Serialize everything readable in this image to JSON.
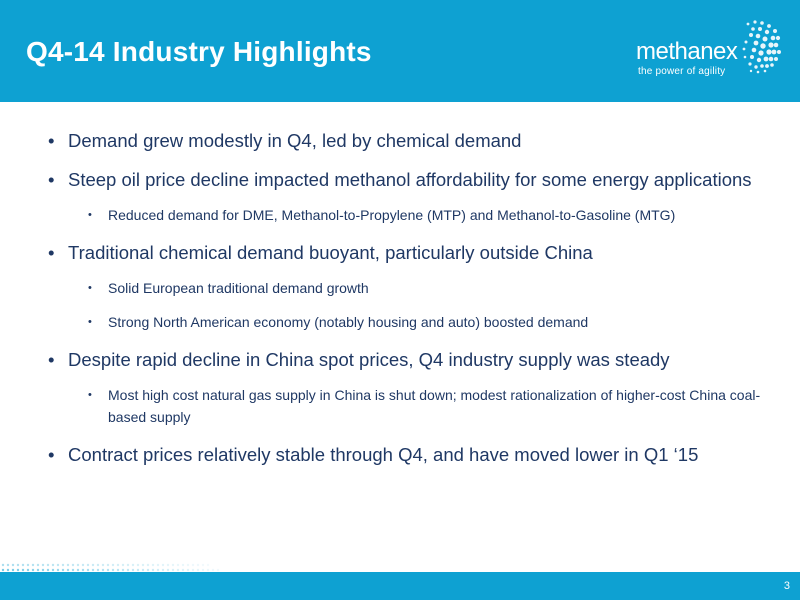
{
  "slide": {
    "title": "Q4-14 Industry Highlights",
    "page_number": "3"
  },
  "logo": {
    "wordmark": "methanex",
    "tagline": "the power of agility"
  },
  "bullets": [
    {
      "text": "Demand grew modestly in Q4, led by chemical demand",
      "sub": []
    },
    {
      "text": "Steep oil price decline impacted methanol affordability for some energy applications",
      "sub": [
        "Reduced demand for DME, Methanol-to-Propylene (MTP) and Methanol-to-Gasoline (MTG)"
      ]
    },
    {
      "text": "Traditional chemical demand buoyant, particularly outside China",
      "sub": [
        "Solid European traditional demand growth",
        "Strong North American economy (notably housing and auto) boosted demand"
      ]
    },
    {
      "text": "Despite rapid decline in China spot prices, Q4 industry supply was steady",
      "sub": [
        "Most high cost natural gas supply in China is shut down; modest rationalization of higher-cost China coal-based supply"
      ]
    },
    {
      "text": "Contract prices relatively stable through Q4, and have moved lower in Q1 ‘15",
      "sub": []
    }
  ],
  "colors": {
    "brand_blue": "#0ea1d2",
    "text_navy": "#1f3864"
  }
}
